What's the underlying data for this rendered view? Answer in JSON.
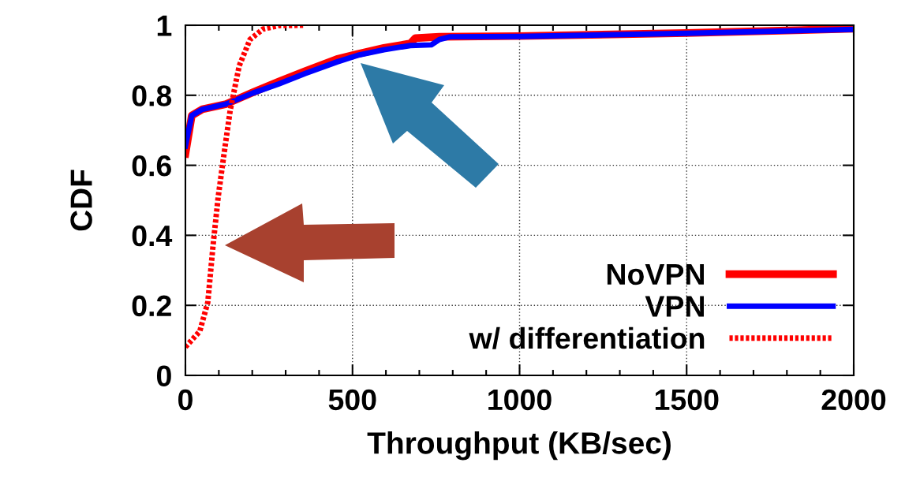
{
  "chart_data": {
    "type": "line",
    "xlabel": "Throughput (KB/sec)",
    "ylabel": "CDF",
    "xlim": [
      0,
      2000
    ],
    "xticks": [
      0,
      500,
      1000,
      1500,
      2000
    ],
    "ylim": [
      0,
      1
    ],
    "yticks": [
      0,
      0.2,
      0.4,
      0.6,
      0.8,
      1
    ],
    "grid": true,
    "legend": "bottom right",
    "marker": "none",
    "series": [
      {
        "name": "NoVPN",
        "color": "#ff0000",
        "line_style": "solid",
        "x": [
          0,
          19,
          51,
          122,
          201,
          279,
          358,
          453,
          515,
          594,
          673,
          688,
          760,
          999,
          1500,
          2000
        ],
        "values": [
          0.633,
          0.742,
          0.76,
          0.775,
          0.808,
          0.839,
          0.869,
          0.903,
          0.918,
          0.935,
          0.948,
          0.963,
          0.967,
          0.969,
          0.978,
          0.99
        ]
      },
      {
        "name": "VPN",
        "color": "#0000ff",
        "line_style": "solid",
        "x": [
          0,
          19,
          51,
          122,
          201,
          279,
          358,
          453,
          515,
          594,
          673,
          736,
          760,
          792,
          999,
          1500,
          2000
        ],
        "values": [
          0.655,
          0.742,
          0.76,
          0.775,
          0.806,
          0.832,
          0.862,
          0.895,
          0.914,
          0.93,
          0.942,
          0.944,
          0.959,
          0.967,
          0.968,
          0.977,
          0.988
        ]
      },
      {
        "name": "w/ differentiation",
        "color": "#ff0000",
        "line_style": "dotted",
        "x": [
          0,
          43,
          67,
          83,
          98,
          114,
          134,
          161,
          193,
          232,
          279,
          358
        ],
        "values": [
          0.081,
          0.126,
          0.209,
          0.374,
          0.509,
          0.622,
          0.757,
          0.884,
          0.959,
          0.989,
          0.999,
          1.0
        ]
      }
    ]
  }
}
